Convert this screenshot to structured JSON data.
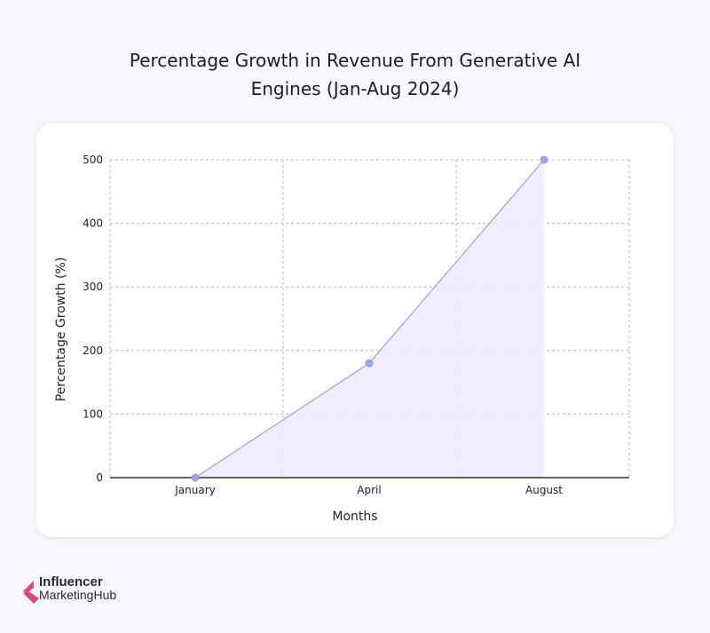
{
  "chart_data": {
    "type": "area",
    "title_lines": [
      "Percentage Growth in Revenue From Generative AI",
      "Engines (Jan-Aug 2024)"
    ],
    "xlabel": "Months",
    "ylabel": "Percentage Growth (%)",
    "categories": [
      "January",
      "April",
      "August"
    ],
    "values": [
      0,
      180,
      500
    ],
    "ylim": [
      0,
      500
    ],
    "yticks": [
      0,
      100,
      200,
      300,
      400,
      500
    ],
    "grid": true,
    "colors": {
      "line": "#9aa3d6",
      "fill": "#ecebfb",
      "marker": "#9aa6e6",
      "grid": "#b8b8b8",
      "axis": "#333333"
    }
  },
  "brand": {
    "line1": "Influencer",
    "line2": "MarketingHub",
    "colors": {
      "mark_primary": "#e0457b",
      "mark_secondary": "#7a2a52"
    }
  }
}
